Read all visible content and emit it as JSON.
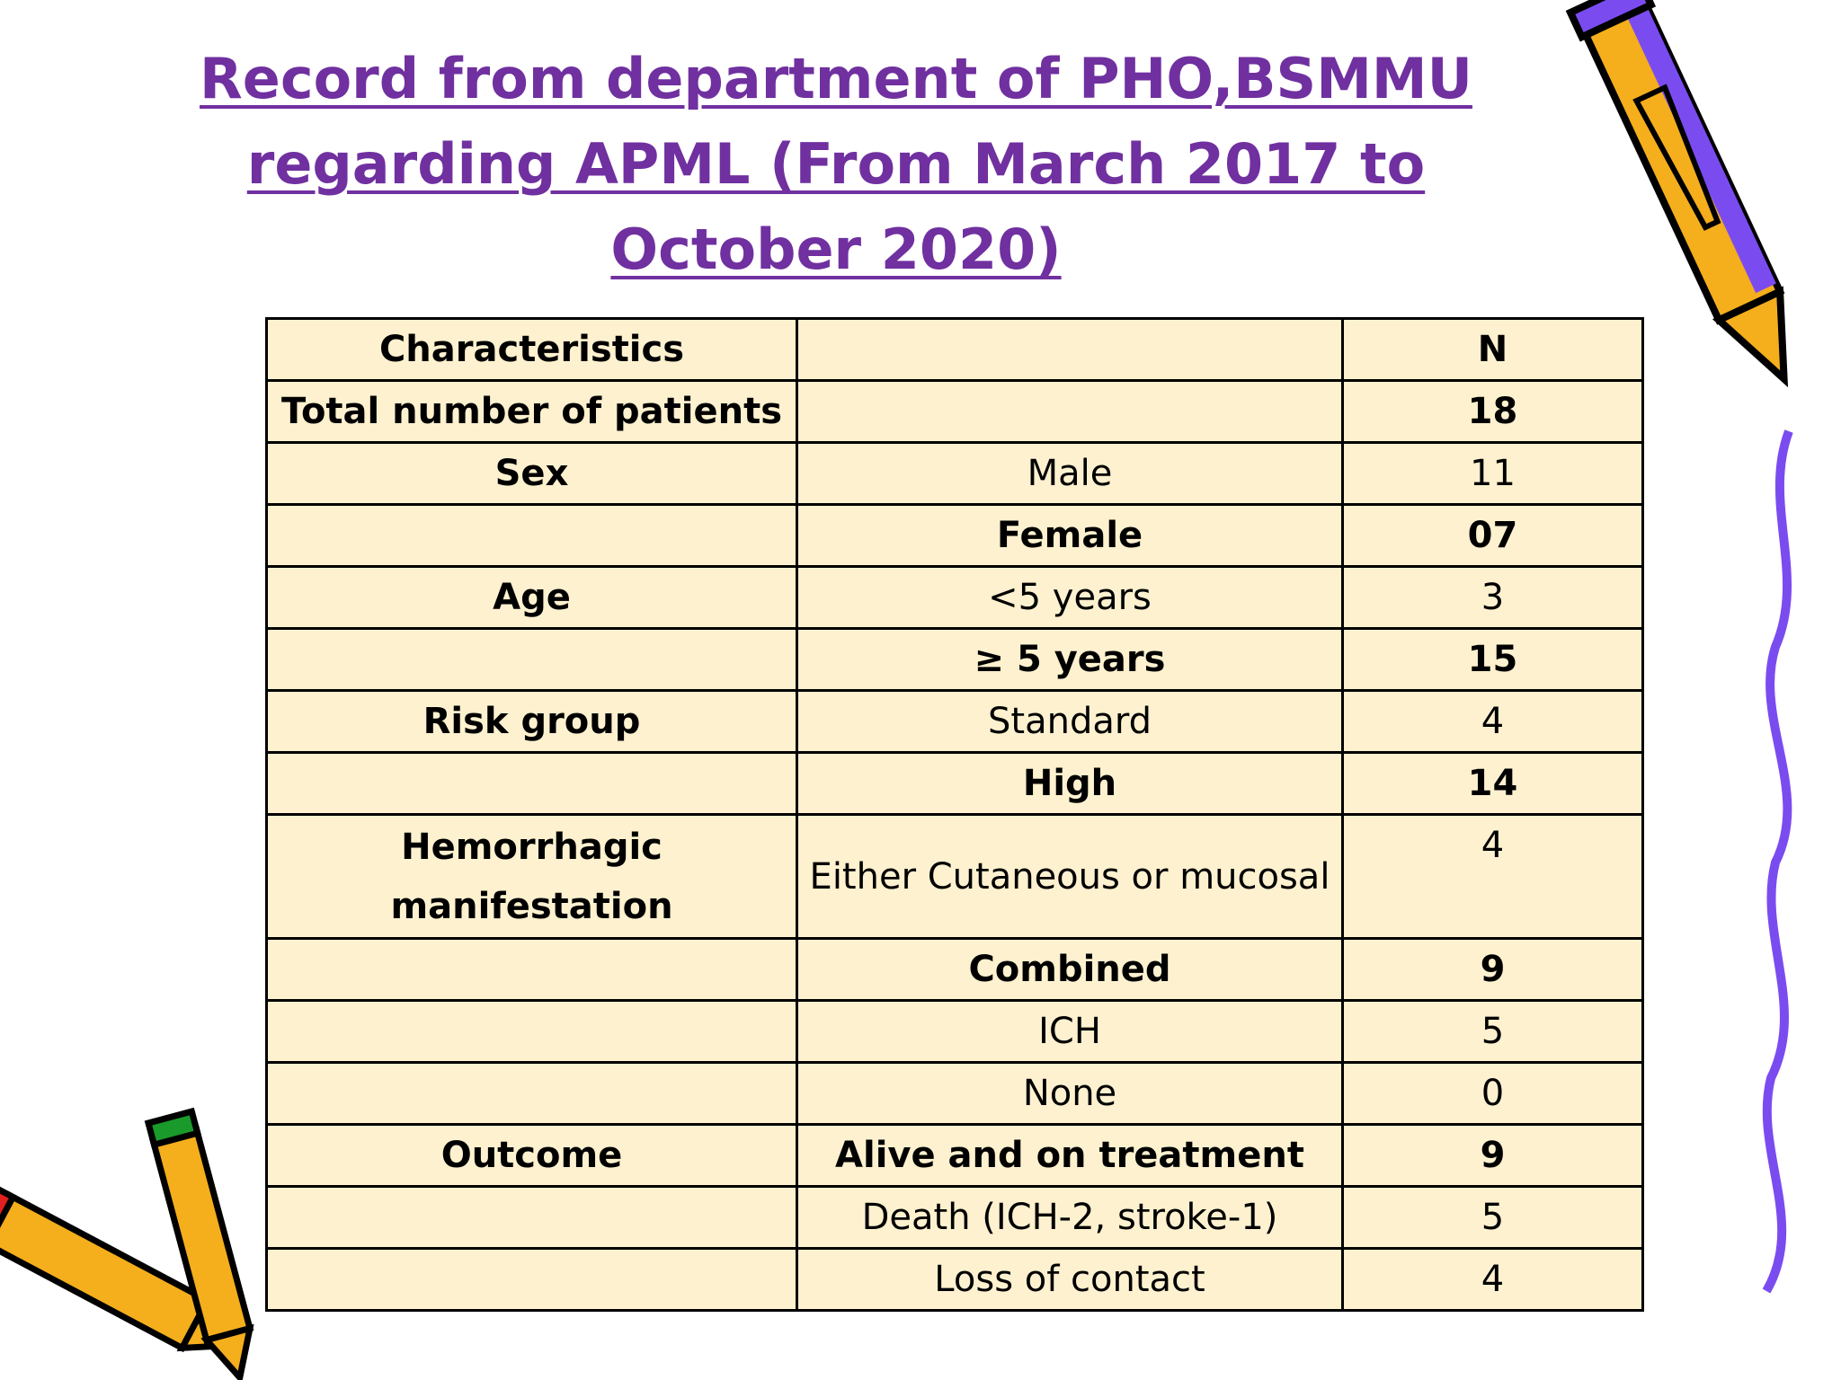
{
  "title": [
    "Record from department of PHO,BSMMU",
    "regarding APML (From March 2017 to",
    "October 2020)"
  ],
  "table": {
    "rows": [
      [
        "Characteristics",
        null,
        "N"
      ],
      [
        "Total number of patients",
        null,
        "18"
      ],
      [
        "Sex",
        "Male",
        "11"
      ],
      [
        null,
        "Female",
        "07"
      ],
      [
        "Age",
        "<5 years",
        "3"
      ],
      [
        null,
        "≥ 5 years",
        "15"
      ],
      [
        "Risk group",
        "Standard",
        "4"
      ],
      [
        null,
        "High",
        "14"
      ],
      [
        "Hemorrhagic manifestation",
        "Either Cutaneous or mucosal",
        "4"
      ],
      [
        null,
        "Combined",
        "9"
      ],
      [
        null,
        "ICH",
        "5"
      ],
      [
        null,
        "None",
        "0"
      ],
      [
        "Outcome",
        "Alive and on treatment",
        "9"
      ],
      [
        null,
        "Death (ICH-2, stroke-1)",
        "5"
      ],
      [
        null,
        "Loss of contact",
        "4"
      ]
    ]
  }
}
